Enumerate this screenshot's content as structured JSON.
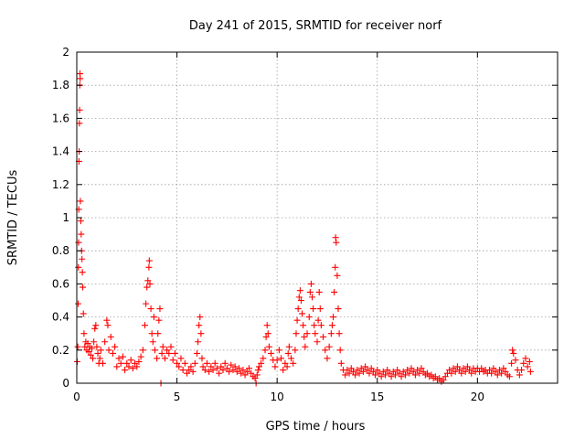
{
  "chart_data": {
    "type": "scatter",
    "title": "Day 241 of 2015, SRMTID for receiver norf",
    "xlabel": "GPS time / hours",
    "ylabel": "SRMTID / TECUs",
    "xlim": [
      0,
      24
    ],
    "ylim": [
      0,
      2
    ],
    "xticks": [
      0,
      5,
      10,
      15,
      20
    ],
    "xtick_labels": [
      "0",
      "5",
      "10",
      "15",
      "20"
    ],
    "yticks": [
      0,
      0.2,
      0.4,
      0.6,
      0.8,
      1,
      1.2,
      1.4,
      1.6,
      1.8,
      2
    ],
    "ytick_labels": [
      "0",
      "0.2",
      "0.4",
      "0.6",
      "0.8",
      "1",
      "1.2",
      "1.4",
      "1.6",
      "1.8",
      "2"
    ],
    "grid": true,
    "marker": "+",
    "color": "#ff0000",
    "series": [
      {
        "name": "SRMTID",
        "points": [
          [
            0.02,
            0.13
          ],
          [
            0.05,
            0.22
          ],
          [
            0.07,
            0.48
          ],
          [
            0.08,
            0.7
          ],
          [
            0.09,
            0.85
          ],
          [
            0.1,
            1.05
          ],
          [
            0.11,
            1.34
          ],
          [
            0.12,
            1.4
          ],
          [
            0.13,
            1.57
          ],
          [
            0.14,
            1.65
          ],
          [
            0.15,
            1.8
          ],
          [
            0.16,
            1.87
          ],
          [
            0.17,
            1.84
          ],
          [
            0.18,
            1.1
          ],
          [
            0.2,
            0.98
          ],
          [
            0.22,
            0.9
          ],
          [
            0.24,
            0.8
          ],
          [
            0.26,
            0.75
          ],
          [
            0.28,
            0.67
          ],
          [
            0.3,
            0.58
          ],
          [
            0.33,
            0.42
          ],
          [
            0.36,
            0.3
          ],
          [
            0.4,
            0.22
          ],
          [
            0.45,
            0.25
          ],
          [
            0.5,
            0.2
          ],
          [
            0.55,
            0.24
          ],
          [
            0.6,
            0.19
          ],
          [
            0.65,
            0.22
          ],
          [
            0.7,
            0.17
          ],
          [
            0.75,
            0.21
          ],
          [
            0.8,
            0.15
          ],
          [
            0.85,
            0.25
          ],
          [
            0.9,
            0.33
          ],
          [
            0.95,
            0.35
          ],
          [
            1.0,
            0.22
          ],
          [
            1.05,
            0.18
          ],
          [
            1.1,
            0.12
          ],
          [
            1.15,
            0.15
          ],
          [
            1.2,
            0.2
          ],
          [
            1.3,
            0.12
          ],
          [
            1.4,
            0.25
          ],
          [
            1.5,
            0.38
          ],
          [
            1.55,
            0.35
          ],
          [
            1.6,
            0.2
          ],
          [
            1.7,
            0.28
          ],
          [
            1.8,
            0.18
          ],
          [
            1.9,
            0.22
          ],
          [
            2.0,
            0.1
          ],
          [
            2.1,
            0.15
          ],
          [
            2.2,
            0.12
          ],
          [
            2.3,
            0.16
          ],
          [
            2.4,
            0.08
          ],
          [
            2.5,
            0.12
          ],
          [
            2.6,
            0.1
          ],
          [
            2.7,
            0.14
          ],
          [
            2.8,
            0.09
          ],
          [
            2.9,
            0.12
          ],
          [
            3.0,
            0.1
          ],
          [
            3.1,
            0.13
          ],
          [
            3.2,
            0.16
          ],
          [
            3.3,
            0.2
          ],
          [
            3.4,
            0.35
          ],
          [
            3.45,
            0.48
          ],
          [
            3.5,
            0.58
          ],
          [
            3.55,
            0.62
          ],
          [
            3.6,
            0.7
          ],
          [
            3.62,
            0.74
          ],
          [
            3.65,
            0.6
          ],
          [
            3.7,
            0.45
          ],
          [
            3.75,
            0.3
          ],
          [
            3.8,
            0.25
          ],
          [
            3.85,
            0.4
          ],
          [
            3.9,
            0.2
          ],
          [
            4.0,
            0.15
          ],
          [
            4.05,
            0.3
          ],
          [
            4.1,
            0.38
          ],
          [
            4.15,
            0.45
          ],
          [
            4.2,
            0.0
          ],
          [
            4.25,
            0.18
          ],
          [
            4.3,
            0.22
          ],
          [
            4.4,
            0.15
          ],
          [
            4.5,
            0.2
          ],
          [
            4.6,
            0.18
          ],
          [
            4.7,
            0.22
          ],
          [
            4.8,
            0.14
          ],
          [
            4.9,
            0.18
          ],
          [
            5.0,
            0.12
          ],
          [
            5.1,
            0.1
          ],
          [
            5.2,
            0.15
          ],
          [
            5.3,
            0.08
          ],
          [
            5.4,
            0.12
          ],
          [
            5.5,
            0.06
          ],
          [
            5.6,
            0.08
          ],
          [
            5.7,
            0.1
          ],
          [
            5.8,
            0.07
          ],
          [
            5.9,
            0.12
          ],
          [
            6.0,
            0.18
          ],
          [
            6.05,
            0.25
          ],
          [
            6.1,
            0.35
          ],
          [
            6.15,
            0.4
          ],
          [
            6.2,
            0.3
          ],
          [
            6.25,
            0.15
          ],
          [
            6.3,
            0.1
          ],
          [
            6.4,
            0.08
          ],
          [
            6.5,
            0.12
          ],
          [
            6.6,
            0.07
          ],
          [
            6.7,
            0.1
          ],
          [
            6.8,
            0.08
          ],
          [
            6.9,
            0.12
          ],
          [
            7.0,
            0.09
          ],
          [
            7.1,
            0.06
          ],
          [
            7.2,
            0.1
          ],
          [
            7.3,
            0.08
          ],
          [
            7.4,
            0.12
          ],
          [
            7.5,
            0.09
          ],
          [
            7.6,
            0.07
          ],
          [
            7.7,
            0.11
          ],
          [
            7.8,
            0.08
          ],
          [
            7.9,
            0.1
          ],
          [
            8.0,
            0.07
          ],
          [
            8.1,
            0.09
          ],
          [
            8.2,
            0.06
          ],
          [
            8.3,
            0.08
          ],
          [
            8.4,
            0.05
          ],
          [
            8.5,
            0.07
          ],
          [
            8.6,
            0.09
          ],
          [
            8.7,
            0.06
          ],
          [
            8.8,
            0.04
          ],
          [
            8.9,
            0.03
          ],
          [
            8.95,
            0.0
          ],
          [
            9.0,
            0.05
          ],
          [
            9.05,
            0.08
          ],
          [
            9.1,
            0.1
          ],
          [
            9.2,
            0.12
          ],
          [
            9.3,
            0.15
          ],
          [
            9.4,
            0.2
          ],
          [
            9.45,
            0.28
          ],
          [
            9.5,
            0.35
          ],
          [
            9.55,
            0.3
          ],
          [
            9.6,
            0.22
          ],
          [
            9.7,
            0.18
          ],
          [
            9.8,
            0.14
          ],
          [
            9.9,
            0.1
          ],
          [
            10.0,
            0.14
          ],
          [
            10.1,
            0.2
          ],
          [
            10.2,
            0.15
          ],
          [
            10.3,
            0.08
          ],
          [
            10.4,
            0.12
          ],
          [
            10.5,
            0.1
          ],
          [
            10.55,
            0.18
          ],
          [
            10.6,
            0.22
          ],
          [
            10.7,
            0.15
          ],
          [
            10.8,
            0.12
          ],
          [
            10.9,
            0.2
          ],
          [
            10.95,
            0.3
          ],
          [
            11.0,
            0.38
          ],
          [
            11.05,
            0.45
          ],
          [
            11.1,
            0.52
          ],
          [
            11.15,
            0.56
          ],
          [
            11.2,
            0.5
          ],
          [
            11.25,
            0.42
          ],
          [
            11.3,
            0.35
          ],
          [
            11.35,
            0.28
          ],
          [
            11.4,
            0.22
          ],
          [
            11.5,
            0.3
          ],
          [
            11.6,
            0.4
          ],
          [
            11.65,
            0.55
          ],
          [
            11.7,
            0.6
          ],
          [
            11.75,
            0.52
          ],
          [
            11.8,
            0.45
          ],
          [
            11.85,
            0.35
          ],
          [
            11.9,
            0.3
          ],
          [
            12.0,
            0.25
          ],
          [
            12.05,
            0.38
          ],
          [
            12.1,
            0.55
          ],
          [
            12.15,
            0.45
          ],
          [
            12.2,
            0.35
          ],
          [
            12.3,
            0.28
          ],
          [
            12.4,
            0.2
          ],
          [
            12.5,
            0.15
          ],
          [
            12.6,
            0.22
          ],
          [
            12.7,
            0.3
          ],
          [
            12.75,
            0.35
          ],
          [
            12.8,
            0.4
          ],
          [
            12.85,
            0.55
          ],
          [
            12.9,
            0.7
          ],
          [
            12.92,
            0.88
          ],
          [
            12.95,
            0.85
          ],
          [
            13.0,
            0.65
          ],
          [
            13.05,
            0.45
          ],
          [
            13.1,
            0.3
          ],
          [
            13.15,
            0.2
          ],
          [
            13.2,
            0.12
          ],
          [
            13.3,
            0.08
          ],
          [
            13.4,
            0.05
          ],
          [
            13.5,
            0.08
          ],
          [
            13.6,
            0.06
          ],
          [
            13.7,
            0.09
          ],
          [
            13.8,
            0.07
          ],
          [
            13.9,
            0.05
          ],
          [
            14.0,
            0.08
          ],
          [
            14.1,
            0.06
          ],
          [
            14.2,
            0.09
          ],
          [
            14.3,
            0.07
          ],
          [
            14.4,
            0.1
          ],
          [
            14.5,
            0.08
          ],
          [
            14.6,
            0.06
          ],
          [
            14.7,
            0.09
          ],
          [
            14.8,
            0.07
          ],
          [
            14.9,
            0.05
          ],
          [
            15.0,
            0.08
          ],
          [
            15.1,
            0.06
          ],
          [
            15.2,
            0.04
          ],
          [
            15.3,
            0.07
          ],
          [
            15.4,
            0.05
          ],
          [
            15.5,
            0.08
          ],
          [
            15.6,
            0.06
          ],
          [
            15.7,
            0.04
          ],
          [
            15.8,
            0.07
          ],
          [
            15.9,
            0.05
          ],
          [
            16.0,
            0.08
          ],
          [
            16.1,
            0.06
          ],
          [
            16.2,
            0.04
          ],
          [
            16.3,
            0.07
          ],
          [
            16.4,
            0.05
          ],
          [
            16.5,
            0.08
          ],
          [
            16.6,
            0.06
          ],
          [
            16.7,
            0.09
          ],
          [
            16.8,
            0.07
          ],
          [
            16.9,
            0.05
          ],
          [
            17.0,
            0.08
          ],
          [
            17.1,
            0.06
          ],
          [
            17.2,
            0.09
          ],
          [
            17.3,
            0.07
          ],
          [
            17.4,
            0.05
          ],
          [
            17.5,
            0.06
          ],
          [
            17.6,
            0.04
          ],
          [
            17.7,
            0.05
          ],
          [
            17.8,
            0.03
          ],
          [
            17.9,
            0.04
          ],
          [
            18.0,
            0.02
          ],
          [
            18.1,
            0.03
          ],
          [
            18.2,
            0.01
          ],
          [
            18.3,
            0.02
          ],
          [
            18.4,
            0.04
          ],
          [
            18.5,
            0.06
          ],
          [
            18.6,
            0.08
          ],
          [
            18.7,
            0.06
          ],
          [
            18.8,
            0.09
          ],
          [
            18.9,
            0.07
          ],
          [
            19.0,
            0.1
          ],
          [
            19.1,
            0.08
          ],
          [
            19.2,
            0.06
          ],
          [
            19.3,
            0.09
          ],
          [
            19.4,
            0.07
          ],
          [
            19.5,
            0.1
          ],
          [
            19.6,
            0.08
          ],
          [
            19.7,
            0.06
          ],
          [
            19.8,
            0.09
          ],
          [
            19.9,
            0.07
          ],
          [
            20.0,
            0.09
          ],
          [
            20.1,
            0.07
          ],
          [
            20.2,
            0.09
          ],
          [
            20.3,
            0.07
          ],
          [
            20.4,
            0.08
          ],
          [
            20.5,
            0.06
          ],
          [
            20.6,
            0.08
          ],
          [
            20.7,
            0.06
          ],
          [
            20.8,
            0.09
          ],
          [
            20.9,
            0.07
          ],
          [
            21.0,
            0.05
          ],
          [
            21.1,
            0.08
          ],
          [
            21.2,
            0.06
          ],
          [
            21.3,
            0.09
          ],
          [
            21.4,
            0.07
          ],
          [
            21.5,
            0.05
          ],
          [
            21.6,
            0.04
          ],
          [
            21.7,
            0.12
          ],
          [
            21.75,
            0.2
          ],
          [
            21.8,
            0.18
          ],
          [
            21.9,
            0.14
          ],
          [
            22.0,
            0.08
          ],
          [
            22.1,
            0.05
          ],
          [
            22.2,
            0.08
          ],
          [
            22.3,
            0.12
          ],
          [
            22.4,
            0.15
          ],
          [
            22.5,
            0.1
          ],
          [
            22.6,
            0.13
          ],
          [
            22.65,
            0.07
          ]
        ]
      }
    ]
  }
}
